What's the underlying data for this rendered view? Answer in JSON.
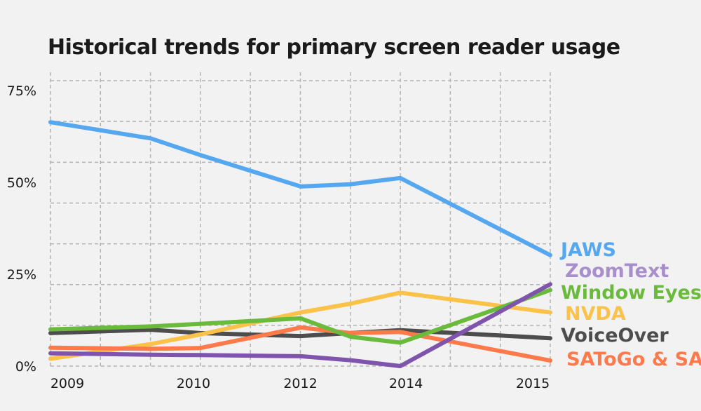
{
  "chart_data": {
    "type": "line",
    "title": "Historical trends for primary screen reader usage",
    "xlabel": "",
    "ylabel": "",
    "x": [
      "2009",
      "2010",
      "2012",
      "2014",
      "2015"
    ],
    "y_ticks": [
      "0%",
      "25%",
      "50%",
      "75%"
    ],
    "ylim": [
      0,
      80
    ],
    "grid": true,
    "legend": "right, inline labels at line ends",
    "series": [
      {
        "name": "JAWS",
        "color": "#55a8f0",
        "x": [
          2009,
          2010,
          2011,
          2012,
          2013,
          2014,
          2015
        ],
        "values": [
          66.4,
          62.0,
          57.5,
          48.9,
          49.5,
          51.2,
          30.2
        ]
      },
      {
        "name": "ZoomText",
        "color": "#7f54ad",
        "x": [
          2009,
          2010,
          2011,
          2012,
          2013,
          2014,
          2015
        ],
        "values": [
          3.5,
          3.1,
          3.0,
          2.7,
          1.6,
          0.0,
          22.3
        ]
      },
      {
        "name": "Window Eyes",
        "color": "#6aba3c",
        "x": [
          2009,
          2010,
          2011,
          2012,
          2013,
          2014,
          2015
        ],
        "values": [
          10.0,
          10.8,
          11.5,
          13.0,
          8.0,
          6.4,
          20.7
        ]
      },
      {
        "name": "NVDA",
        "color": "#fbc24a",
        "x": [
          2009,
          2010,
          2011,
          2012,
          2013,
          2014,
          2015
        ],
        "values": [
          2.0,
          6.0,
          8.6,
          14.6,
          17.0,
          20.0,
          14.6
        ]
      },
      {
        "name": "VoiceOver",
        "color": "#4d4d4d",
        "x": [
          2009,
          2010,
          2011,
          2012,
          2013,
          2014,
          2015
        ],
        "values": [
          9.0,
          9.9,
          9.0,
          8.2,
          9.0,
          9.8,
          7.6
        ]
      },
      {
        "name": "SATogo & SA",
        "color": "#ff7a4a",
        "x": [
          2009,
          2010,
          2011,
          2012,
          2013,
          2014,
          2015
        ],
        "values": [
          5.0,
          4.7,
          4.9,
          10.5,
          9.0,
          9.3,
          1.5
        ]
      }
    ]
  },
  "legend_labels": [
    {
      "text": "JAWS",
      "color": "#55a8f0"
    },
    {
      "text": "ZoomText",
      "color": "#a88ecb"
    },
    {
      "text": "Window Eyes",
      "color": "#6aba3c"
    },
    {
      "text": "NVDA",
      "color": "#fbc24a"
    },
    {
      "text": "VoiceOver",
      "color": "#4d4d4d"
    },
    {
      "text": "SAToGo & SA",
      "color": "#ff7a4a"
    }
  ]
}
